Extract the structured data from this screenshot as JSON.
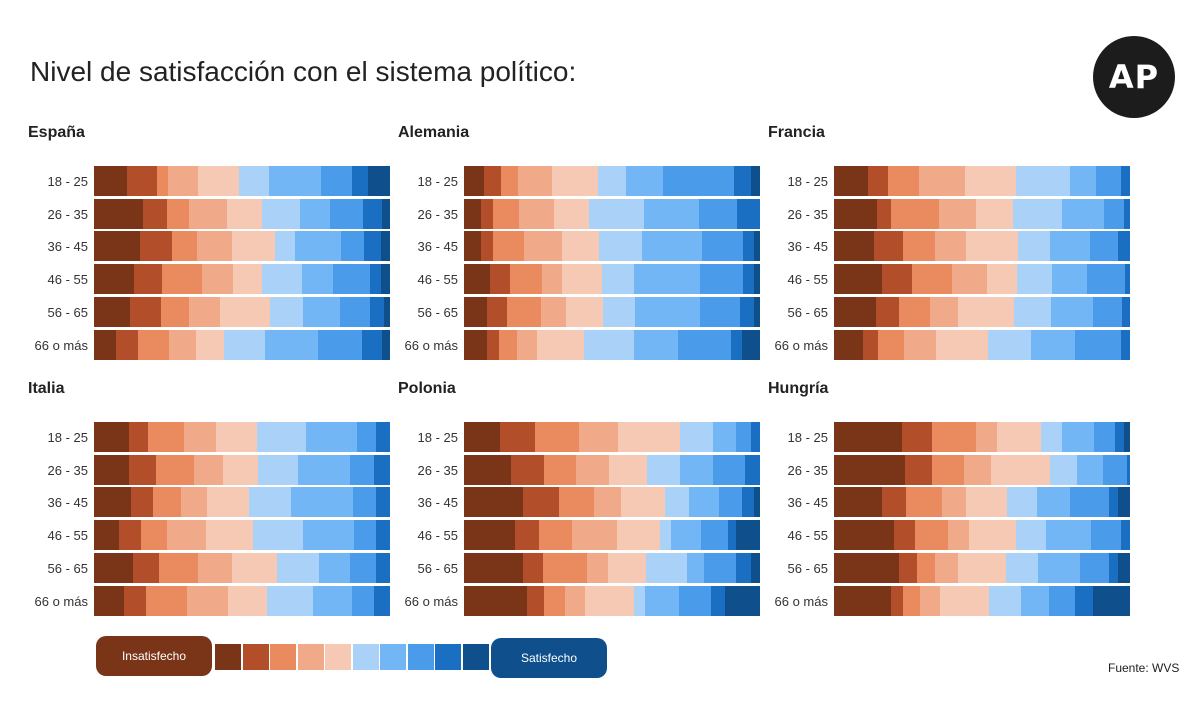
{
  "title": "Nivel de satisfacción con el sistema político:",
  "logo": "AP",
  "colors": [
    "#7a3519",
    "#b24f2a",
    "#e98a5f",
    "#f0aa8a",
    "#f5c9b3",
    "#aad1f7",
    "#72b6f5",
    "#4a9cea",
    "#1a6fc3",
    "#0e4f8c"
  ],
  "legend": {
    "low_label": "Insatisfecho",
    "high_label": "Satisfecho"
  },
  "source": "Fuente: WVS",
  "chart_data": [
    {
      "type": "bar",
      "stacked": true,
      "orientation": "horizontal",
      "title": "España",
      "categories": [
        "18 - 25",
        "26 - 35",
        "36 - 45",
        "46 - 55",
        "56 - 65",
        "66 o más"
      ],
      "rows": [
        [
          12,
          11,
          4,
          11,
          15,
          11,
          19,
          11,
          6,
          8
        ],
        [
          18,
          9,
          8,
          14,
          13,
          14,
          11,
          12,
          7,
          3
        ],
        [
          16,
          11,
          9,
          12,
          15,
          7,
          16,
          8,
          6,
          3
        ],
        [
          14,
          10,
          14,
          11,
          10,
          14,
          11,
          13,
          4,
          3
        ],
        [
          13,
          11,
          10,
          11,
          18,
          12,
          13,
          11,
          5,
          2
        ],
        [
          8,
          8,
          11,
          10,
          10,
          15,
          19,
          16,
          7,
          3
        ]
      ]
    },
    {
      "type": "bar",
      "stacked": true,
      "orientation": "horizontal",
      "title": "Alemania",
      "categories": [
        "18 - 25",
        "26 - 35",
        "36 - 45",
        "46 - 55",
        "56 - 65",
        "66 o más"
      ],
      "rows": [
        [
          7,
          6,
          6,
          12,
          16,
          10,
          13,
          25,
          6,
          3
        ],
        [
          6,
          4,
          9,
          12,
          12,
          19,
          19,
          13,
          8,
          0
        ],
        [
          6,
          4,
          11,
          13,
          13,
          15,
          21,
          14,
          4,
          2
        ],
        [
          9,
          7,
          11,
          7,
          14,
          11,
          23,
          15,
          4,
          2
        ],
        [
          8,
          7,
          12,
          9,
          13,
          11,
          23,
          14,
          5,
          2
        ],
        [
          8,
          4,
          6,
          7,
          16,
          17,
          15,
          18,
          4,
          6
        ]
      ]
    },
    {
      "type": "bar",
      "stacked": true,
      "orientation": "horizontal",
      "title": "Francia",
      "categories": [
        "18 - 25",
        "26 - 35",
        "36 - 45",
        "46 - 55",
        "56 - 65",
        "66 o más"
      ],
      "rows": [
        [
          12,
          7,
          11,
          16,
          18,
          19,
          9,
          9,
          3,
          0
        ],
        [
          15,
          5,
          17,
          13,
          13,
          17,
          15,
          7,
          2,
          0
        ],
        [
          14,
          10,
          11,
          11,
          18,
          11,
          14,
          10,
          4,
          0
        ],
        [
          18,
          11,
          15,
          13,
          11,
          13,
          13,
          14,
          2,
          0
        ],
        [
          15,
          8,
          11,
          10,
          20,
          13,
          15,
          10,
          3,
          0
        ],
        [
          10,
          5,
          9,
          11,
          18,
          15,
          15,
          16,
          3,
          0
        ]
      ]
    },
    {
      "type": "bar",
      "stacked": true,
      "orientation": "horizontal",
      "title": "Italia",
      "categories": [
        "18 - 25",
        "26 - 35",
        "36 - 45",
        "46 - 55",
        "56 - 65",
        "66 o más"
      ],
      "rows": [
        [
          13,
          7,
          13,
          12,
          15,
          18,
          19,
          7,
          5,
          0
        ],
        [
          13,
          10,
          14,
          11,
          13,
          15,
          19,
          9,
          6,
          0
        ],
        [
          13,
          8,
          10,
          9,
          15,
          15,
          22,
          8,
          5,
          0
        ],
        [
          9,
          8,
          9,
          14,
          17,
          18,
          18,
          8,
          5,
          0
        ],
        [
          14,
          9,
          14,
          12,
          16,
          15,
          11,
          9,
          5,
          0
        ],
        [
          11,
          8,
          15,
          15,
          14,
          17,
          14,
          8,
          6,
          0
        ]
      ]
    },
    {
      "type": "bar",
      "stacked": true,
      "orientation": "horizontal",
      "title": "Polonia",
      "categories": [
        "18 - 25",
        "26 - 35",
        "36 - 45",
        "46 - 55",
        "56 - 65",
        "66 o más"
      ],
      "rows": [
        [
          12,
          12,
          15,
          13,
          21,
          11,
          8,
          5,
          3,
          0
        ],
        [
          16,
          11,
          11,
          11,
          13,
          11,
          11,
          11,
          5,
          0
        ],
        [
          20,
          12,
          12,
          9,
          15,
          8,
          10,
          8,
          4,
          2
        ],
        [
          19,
          9,
          12,
          17,
          16,
          4,
          11,
          10,
          3,
          9
        ],
        [
          20,
          7,
          15,
          7,
          13,
          14,
          6,
          11,
          5,
          3
        ],
        [
          22,
          6,
          7,
          7,
          17,
          4,
          12,
          11,
          5,
          12
        ]
      ]
    },
    {
      "type": "bar",
      "stacked": true,
      "orientation": "horizontal",
      "title": "Hungría",
      "categories": [
        "18 - 25",
        "26 - 35",
        "36 - 45",
        "46 - 55",
        "56 - 65",
        "66 o más"
      ],
      "rows": [
        [
          23,
          10,
          15,
          7,
          15,
          7,
          11,
          7,
          3,
          2
        ],
        [
          24,
          9,
          11,
          9,
          20,
          9,
          9,
          8,
          1,
          0
        ],
        [
          16,
          8,
          12,
          8,
          14,
          10,
          11,
          13,
          3,
          4
        ],
        [
          20,
          7,
          11,
          7,
          16,
          10,
          15,
          10,
          3,
          0
        ],
        [
          22,
          6,
          6,
          8,
          16,
          11,
          14,
          10,
          3,
          4
        ],
        [
          20,
          4,
          6,
          7,
          17,
          11,
          10,
          9,
          6,
          13
        ]
      ]
    }
  ]
}
